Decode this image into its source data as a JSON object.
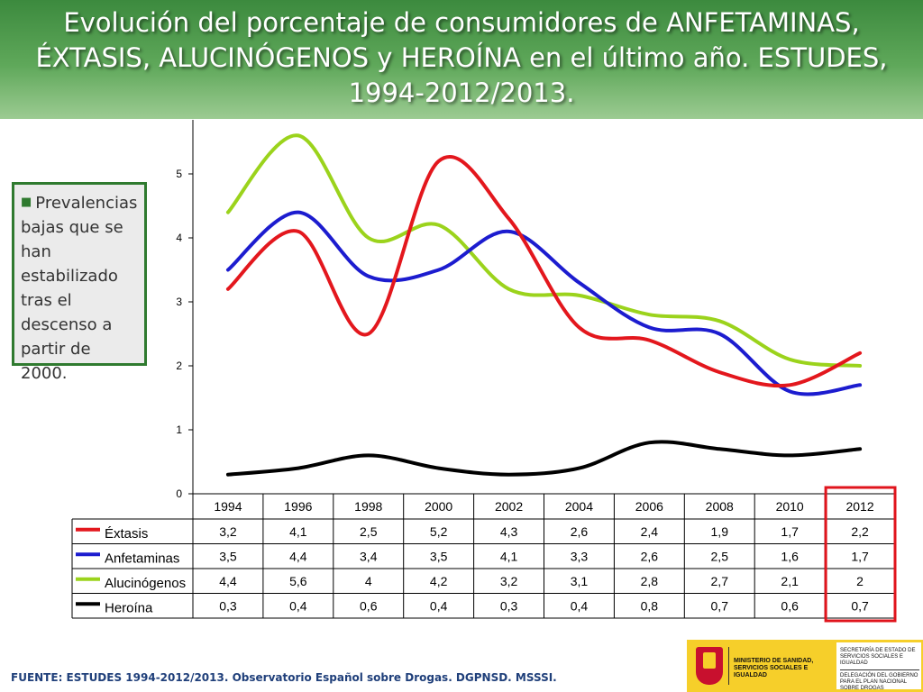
{
  "title": "Evolución del porcentaje de consumidores de ANFETAMINAS, ÉXTASIS, ALUCINÓGENOS y HEROÍNA en el último año. ESTUDES, 1994-2012/2013.",
  "note": "Prevalencias bajas que se han estabilizado tras el descenso a partir de 2000.",
  "footer": "FUENTE: ESTUDES 1994-2012/2013. Observatorio Español sobre Drogas. DGPNSD. MSSSI.",
  "logo": {
    "ministry": "MINISTERIO DE SANIDAD, SERVICIOS SOCIALES E IGUALDAD",
    "secretaria": "SECRETARÍA DE ESTADO DE SERVICIOS SOCIALES E IGUALDAD",
    "delegacion": "DELEGACIÓN DEL GOBIERNO PARA EL PLAN NACIONAL SOBRE DROGAS"
  },
  "chart_data": {
    "type": "line",
    "categories": [
      "1994",
      "1996",
      "1998",
      "2000",
      "2002",
      "2004",
      "2006",
      "2008",
      "2010",
      "2012"
    ],
    "series": [
      {
        "name": "Éxtasis",
        "color": "#e3171d",
        "values": [
          3.2,
          4.1,
          2.5,
          5.2,
          4.3,
          2.6,
          2.4,
          1.9,
          1.7,
          2.2
        ]
      },
      {
        "name": "Anfetaminas",
        "color": "#1c1ccf",
        "values": [
          3.5,
          4.4,
          3.4,
          3.5,
          4.1,
          3.3,
          2.6,
          2.5,
          1.6,
          1.7
        ]
      },
      {
        "name": "Alucinógenos",
        "color": "#9bd31c",
        "values": [
          4.4,
          5.6,
          4,
          4.2,
          3.2,
          3.1,
          2.8,
          2.7,
          2.1,
          2
        ]
      },
      {
        "name": "Heroína",
        "color": "#000000",
        "values": [
          0.3,
          0.4,
          0.6,
          0.4,
          0.3,
          0.4,
          0.8,
          0.7,
          0.6,
          0.7
        ]
      }
    ],
    "value_labels": [
      [
        "3,2",
        "4,1",
        "2,5",
        "5,2",
        "4,3",
        "2,6",
        "2,4",
        "1,9",
        "1,7",
        "2,2"
      ],
      [
        "3,5",
        "4,4",
        "3,4",
        "3,5",
        "4,1",
        "3,3",
        "2,6",
        "2,5",
        "1,6",
        "1,7"
      ],
      [
        "4,4",
        "5,6",
        "4",
        "4,2",
        "3,2",
        "3,1",
        "2,8",
        "2,7",
        "2,1",
        "2"
      ],
      [
        "0,3",
        "0,4",
        "0,6",
        "0,4",
        "0,3",
        "0,4",
        "0,8",
        "0,7",
        "0,6",
        "0,7"
      ]
    ],
    "yticks": [
      0,
      1,
      2,
      3,
      4,
      5
    ],
    "ylim": [
      0,
      5.8
    ],
    "legend": "data-table-below",
    "highlight": {
      "category": "2012",
      "color": "#e0141c"
    },
    "grid": false
  }
}
